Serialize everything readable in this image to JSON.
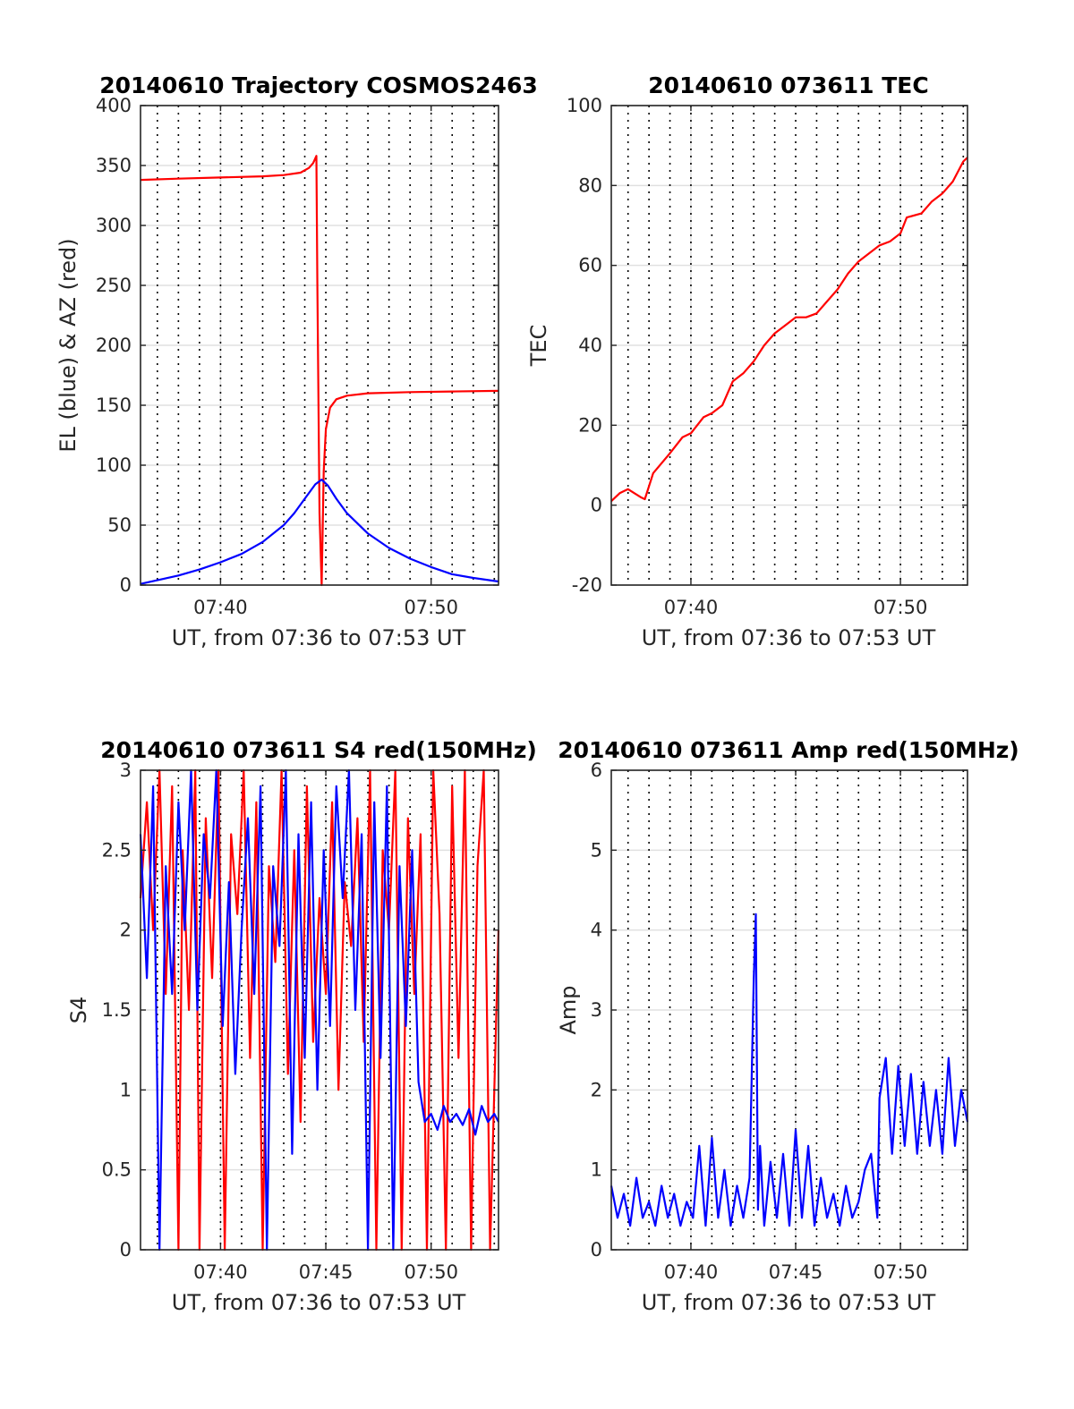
{
  "chart_data": [
    {
      "type": "line",
      "title": "20140610 Trajectory COSMOS2463",
      "xlabel": "UT, from 07:36 to 07:53 UT",
      "ylabel": "EL (blue) & AZ (red)",
      "x_unit": "minutes after 07:00 UT",
      "xlim": [
        36.2,
        53.2
      ],
      "ylim": [
        0,
        400
      ],
      "xticks": [
        40,
        50
      ],
      "xtick_labels": [
        "07:40",
        "07:50"
      ],
      "yticks": [
        0,
        50,
        100,
        150,
        200,
        250,
        300,
        350,
        400
      ],
      "ytick_labels": [
        "0",
        "50",
        "100",
        "150",
        "200",
        "250",
        "300",
        "350",
        "400"
      ],
      "minute_gridlines": true,
      "grid": true,
      "series": [
        {
          "color": "#ff0000",
          "x": [
            36.2,
            38,
            40,
            42,
            43,
            43.8,
            44.2,
            44.4,
            44.5,
            44.55,
            44.6,
            44.7,
            44.8,
            44.9,
            45.0,
            45.2,
            45.5,
            46,
            47,
            49,
            51,
            53.2
          ],
          "values": [
            338,
            339,
            340,
            341,
            342,
            344,
            348,
            352,
            356,
            358,
            250,
            60,
            0,
            95,
            130,
            148,
            155,
            158,
            160,
            161,
            161.5,
            162
          ]
        },
        {
          "color": "#0000ff",
          "x": [
            36.2,
            37,
            38,
            39,
            40,
            41,
            42,
            43,
            43.5,
            44,
            44.5,
            44.8,
            45.1,
            45.5,
            46,
            47,
            48,
            49,
            50,
            51,
            52,
            53.2
          ],
          "values": [
            1,
            4,
            8,
            13,
            19,
            26,
            36,
            50,
            60,
            72,
            84,
            88,
            83,
            72,
            60,
            43,
            31,
            22,
            15,
            9,
            6,
            3
          ]
        }
      ]
    },
    {
      "type": "line",
      "title": "20140610 073611 TEC",
      "xlabel": "UT, from 07:36 to 07:53 UT",
      "ylabel": "TEC",
      "x_unit": "minutes after 07:00 UT",
      "xlim": [
        36.2,
        53.2
      ],
      "ylim": [
        -20,
        100
      ],
      "xticks": [
        40,
        50
      ],
      "xtick_labels": [
        "07:40",
        "07:50"
      ],
      "yticks": [
        -20,
        0,
        20,
        40,
        60,
        80,
        100
      ],
      "ytick_labels": [
        "-20",
        "0",
        "20",
        "40",
        "60",
        "80",
        "100"
      ],
      "minute_gridlines": true,
      "grid": true,
      "series": [
        {
          "color": "#ff0000",
          "x": [
            36.2,
            36.6,
            37,
            37.3,
            37.6,
            37.8,
            38.2,
            39,
            39.6,
            40,
            40.6,
            41,
            41.5,
            42,
            42.5,
            43,
            43.5,
            44,
            44.5,
            45,
            45.5,
            46,
            46.5,
            47,
            47.5,
            48,
            48.5,
            49,
            49.5,
            50,
            50.3,
            51,
            51.5,
            52,
            52.5,
            53,
            53.2
          ],
          "values": [
            1,
            3,
            4,
            3,
            2,
            1.5,
            8,
            13,
            17,
            18,
            22,
            23,
            25,
            31,
            33,
            36,
            40,
            43,
            45,
            47,
            47,
            48,
            51,
            54,
            58,
            61,
            63,
            65,
            66,
            68,
            72,
            73,
            76,
            78,
            81,
            86,
            87
          ]
        }
      ]
    },
    {
      "type": "line",
      "title": "20140610 073611 S4 red(150MHz)",
      "xlabel": "UT, from 07:36 to 07:53 UT",
      "ylabel": "S4",
      "x_unit": "minutes after 07:00 UT",
      "xlim": [
        36.2,
        53.2
      ],
      "ylim": [
        0,
        3
      ],
      "xticks": [
        40,
        45,
        50
      ],
      "xtick_labels": [
        "07:40",
        "07:45",
        "07:50"
      ],
      "yticks": [
        0,
        0.5,
        1,
        1.5,
        2,
        2.5,
        3
      ],
      "ytick_labels": [
        "0",
        "0.5",
        "1",
        "1.5",
        "2",
        "2.5",
        "3"
      ],
      "minute_gridlines": true,
      "grid": true,
      "series": [
        {
          "color": "#ff0000",
          "x": [
            36.2,
            36.5,
            36.8,
            37.1,
            37.4,
            37.7,
            38.0,
            38.2,
            38.5,
            38.8,
            39.0,
            39.3,
            39.6,
            39.9,
            40.2,
            40.5,
            40.8,
            41.1,
            41.4,
            41.7,
            42.0,
            42.3,
            42.6,
            42.9,
            43.2,
            43.5,
            43.8,
            44.1,
            44.4,
            44.7,
            45.0,
            45.3,
            45.6,
            45.9,
            46.2,
            46.5,
            46.8,
            47.1,
            47.4,
            47.7,
            48.0,
            48.3,
            48.6,
            48.9,
            49.2,
            49.5,
            49.8,
            50.1,
            50.4,
            50.7,
            51.0,
            51.3,
            51.6,
            51.9,
            52.2,
            52.5,
            52.8,
            53.2
          ],
          "values": [
            2.2,
            2.8,
            2.0,
            3.0,
            1.6,
            2.9,
            0,
            2.5,
            1.5,
            3.0,
            0,
            2.7,
            1.7,
            3.0,
            0,
            2.6,
            2.1,
            3.0,
            1.2,
            2.8,
            0,
            2.4,
            1.8,
            3.0,
            1.1,
            2.5,
            0.8,
            2.9,
            1.3,
            2.2,
            1.6,
            2.8,
            1.0,
            2.3,
            1.9,
            2.7,
            1.3,
            3.0,
            0,
            2.5,
            2.0,
            3.0,
            0,
            2.7,
            1.6,
            2.6,
            0,
            3.0,
            2.1,
            0,
            2.9,
            1.2,
            3.0,
            0,
            2.4,
            3.0,
            0,
            2.0
          ]
        },
        {
          "color": "#0000ff",
          "x": [
            36.2,
            36.5,
            36.8,
            37.1,
            37.4,
            37.7,
            38.0,
            38.3,
            38.6,
            38.9,
            39.2,
            39.5,
            39.8,
            40.1,
            40.4,
            40.7,
            41.0,
            41.3,
            41.6,
            41.9,
            42.2,
            42.5,
            42.8,
            43.1,
            43.4,
            43.7,
            44.0,
            44.3,
            44.6,
            44.9,
            45.2,
            45.5,
            45.8,
            46.1,
            46.4,
            46.7,
            47.0,
            47.3,
            47.6,
            47.9,
            48.2,
            48.5,
            48.8,
            49.1,
            49.4,
            49.7,
            50.0,
            50.3,
            50.6,
            50.9,
            51.2,
            51.5,
            51.8,
            52.1,
            52.4,
            52.7,
            53.0,
            53.2
          ],
          "values": [
            2.6,
            1.7,
            2.9,
            0,
            2.4,
            1.6,
            2.8,
            2.0,
            3.0,
            1.5,
            2.6,
            2.2,
            3.0,
            1.4,
            2.3,
            1.1,
            2.0,
            2.7,
            1.6,
            2.9,
            0,
            2.4,
            1.9,
            3.0,
            0.6,
            2.6,
            1.2,
            2.8,
            1.0,
            2.5,
            1.4,
            2.9,
            2.2,
            3.0,
            1.5,
            2.6,
            0,
            2.8,
            1.2,
            2.9,
            0,
            2.4,
            1.4,
            2.5,
            1.05,
            0.8,
            0.85,
            0.75,
            0.9,
            0.8,
            0.85,
            0.78,
            0.88,
            0.72,
            0.9,
            0.8,
            0.85,
            0.8
          ]
        }
      ]
    },
    {
      "type": "line",
      "title": "20140610 073611 Amp red(150MHz)",
      "xlabel": "UT, from 07:36 to 07:53 UT",
      "ylabel": "Amp",
      "x_unit": "minutes after 07:00 UT",
      "xlim": [
        36.2,
        53.2
      ],
      "ylim": [
        0,
        6
      ],
      "xticks": [
        40,
        45,
        50
      ],
      "xtick_labels": [
        "07:40",
        "07:45",
        "07:50"
      ],
      "yticks": [
        0,
        1,
        2,
        3,
        4,
        5,
        6
      ],
      "ytick_labels": [
        "0",
        "1",
        "2",
        "3",
        "4",
        "5",
        "6"
      ],
      "minute_gridlines": true,
      "grid": true,
      "series": [
        {
          "color": "#0000ff",
          "x": [
            36.2,
            36.5,
            36.8,
            37.1,
            37.4,
            37.7,
            38.0,
            38.3,
            38.6,
            38.9,
            39.2,
            39.5,
            39.8,
            40.1,
            40.4,
            40.7,
            41.0,
            41.3,
            41.6,
            41.9,
            42.2,
            42.5,
            42.8,
            43.0,
            43.1,
            43.2,
            43.3,
            43.5,
            43.8,
            44.1,
            44.4,
            44.7,
            45.0,
            45.3,
            45.6,
            45.9,
            46.2,
            46.5,
            46.8,
            47.1,
            47.4,
            47.7,
            48.0,
            48.3,
            48.6,
            48.9,
            49.0,
            49.3,
            49.6,
            49.9,
            50.2,
            50.5,
            50.8,
            51.1,
            51.4,
            51.7,
            52.0,
            52.3,
            52.6,
            52.9,
            53.2
          ],
          "values": [
            0.8,
            0.4,
            0.7,
            0.3,
            0.9,
            0.4,
            0.6,
            0.3,
            0.8,
            0.4,
            0.7,
            0.3,
            0.6,
            0.4,
            1.3,
            0.3,
            1.4,
            0.4,
            1.0,
            0.3,
            0.8,
            0.4,
            0.9,
            3.4,
            4.2,
            0.5,
            1.3,
            0.3,
            1.1,
            0.4,
            1.2,
            0.3,
            1.5,
            0.4,
            1.3,
            0.3,
            0.9,
            0.4,
            0.7,
            0.3,
            0.8,
            0.4,
            0.6,
            1.0,
            1.2,
            0.4,
            1.9,
            2.4,
            1.2,
            2.3,
            1.3,
            2.2,
            1.2,
            2.1,
            1.3,
            2.0,
            1.2,
            2.4,
            1.3,
            2.0,
            1.6
          ]
        }
      ]
    }
  ]
}
